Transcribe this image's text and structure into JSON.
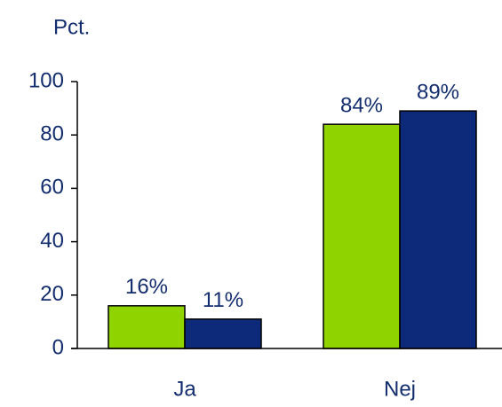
{
  "chart_data": {
    "type": "bar",
    "y_label": "Pct.",
    "categories": [
      "Ja",
      "Nej"
    ],
    "series": [
      {
        "color": "#8fd400",
        "values": [
          16,
          84
        ],
        "value_labels": [
          "16%",
          "84%"
        ]
      },
      {
        "color": "#0d2a7a",
        "values": [
          11,
          89
        ],
        "value_labels": [
          "11%",
          "89%"
        ]
      }
    ],
    "ylim": [
      0,
      100
    ],
    "yticks": [
      0,
      20,
      40,
      60,
      80,
      100
    ]
  }
}
